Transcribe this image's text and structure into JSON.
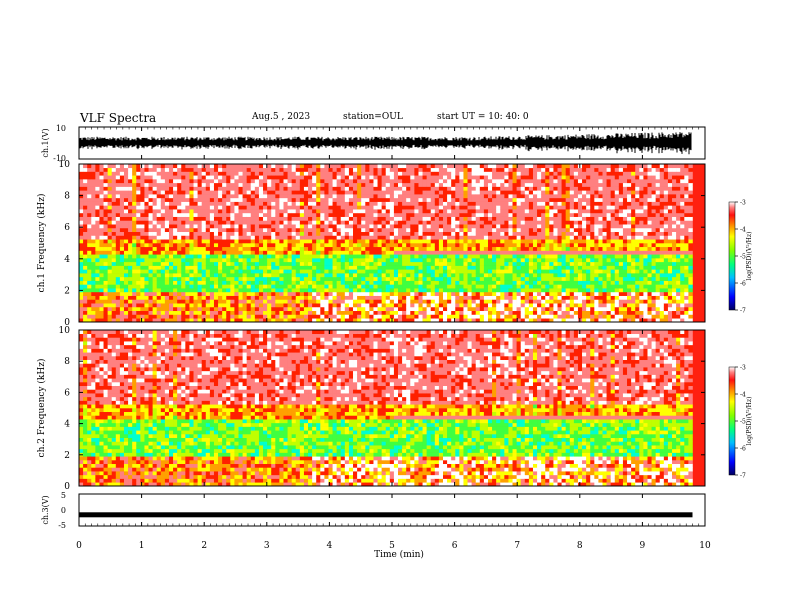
{
  "header": {
    "title": "VLF Spectra",
    "date": "Aug.5 , 2023",
    "station": "station=OUL",
    "start": "start UT = 10: 40: 0"
  },
  "chart_data": [
    {
      "type": "line",
      "panel": "waveform-ch1",
      "ylabel": "ch.1(V)",
      "ylim": [
        -10,
        10
      ],
      "y_ticks": [
        "10",
        "-10"
      ],
      "x_range": [
        0,
        10
      ],
      "description_values": "dense waveform, amplitude roughly -10 to 10 V, increasing after 7 min"
    },
    {
      "type": "heatmap",
      "panel": "spectrogram-ch1",
      "ylabel": "ch.1 Frequency (kHz)",
      "ylim": [
        0,
        10
      ],
      "y_ticks": [
        "0",
        "2",
        "4",
        "6",
        "8",
        "10"
      ],
      "x_range": [
        0,
        9.8
      ],
      "colorbar": {
        "label": "log(PSD)(V²/Hz)",
        "range": [
          -7,
          -3
        ],
        "ticks": [
          "-3",
          "-4",
          "-5",
          "-6",
          "-7"
        ]
      }
    },
    {
      "type": "heatmap",
      "panel": "spectrogram-ch2",
      "ylabel": "ch.2 Frequency (kHz)",
      "ylim": [
        0,
        10
      ],
      "y_ticks": [
        "0",
        "2",
        "4",
        "6",
        "8",
        "10"
      ],
      "x_range": [
        0,
        9.8
      ],
      "colorbar": {
        "label": "log(PSD)(V²/Hz)",
        "range": [
          -7,
          -3
        ],
        "ticks": [
          "-3",
          "-4",
          "-5",
          "-6",
          "-7"
        ]
      }
    },
    {
      "type": "line",
      "panel": "waveform-ch3",
      "ylabel": "ch.3(V)",
      "ylim": [
        -5,
        5
      ],
      "y_ticks": [
        "5",
        "0",
        "-5"
      ],
      "x_range": [
        0,
        9.8
      ],
      "values_constant": -1.5
    }
  ],
  "xaxis": {
    "label": "Time (min)",
    "ticks": [
      "0",
      "1",
      "2",
      "3",
      "4",
      "5",
      "6",
      "7",
      "8",
      "9",
      "10"
    ],
    "range": [
      0,
      10
    ]
  },
  "colors": {
    "colormap": [
      "#000080",
      "#0000ff",
      "#00a0ff",
      "#00ffd0",
      "#40ff40",
      "#c0ff00",
      "#ffff00",
      "#ffa000",
      "#ff2000",
      "#ff8080",
      "#ffffff"
    ]
  }
}
